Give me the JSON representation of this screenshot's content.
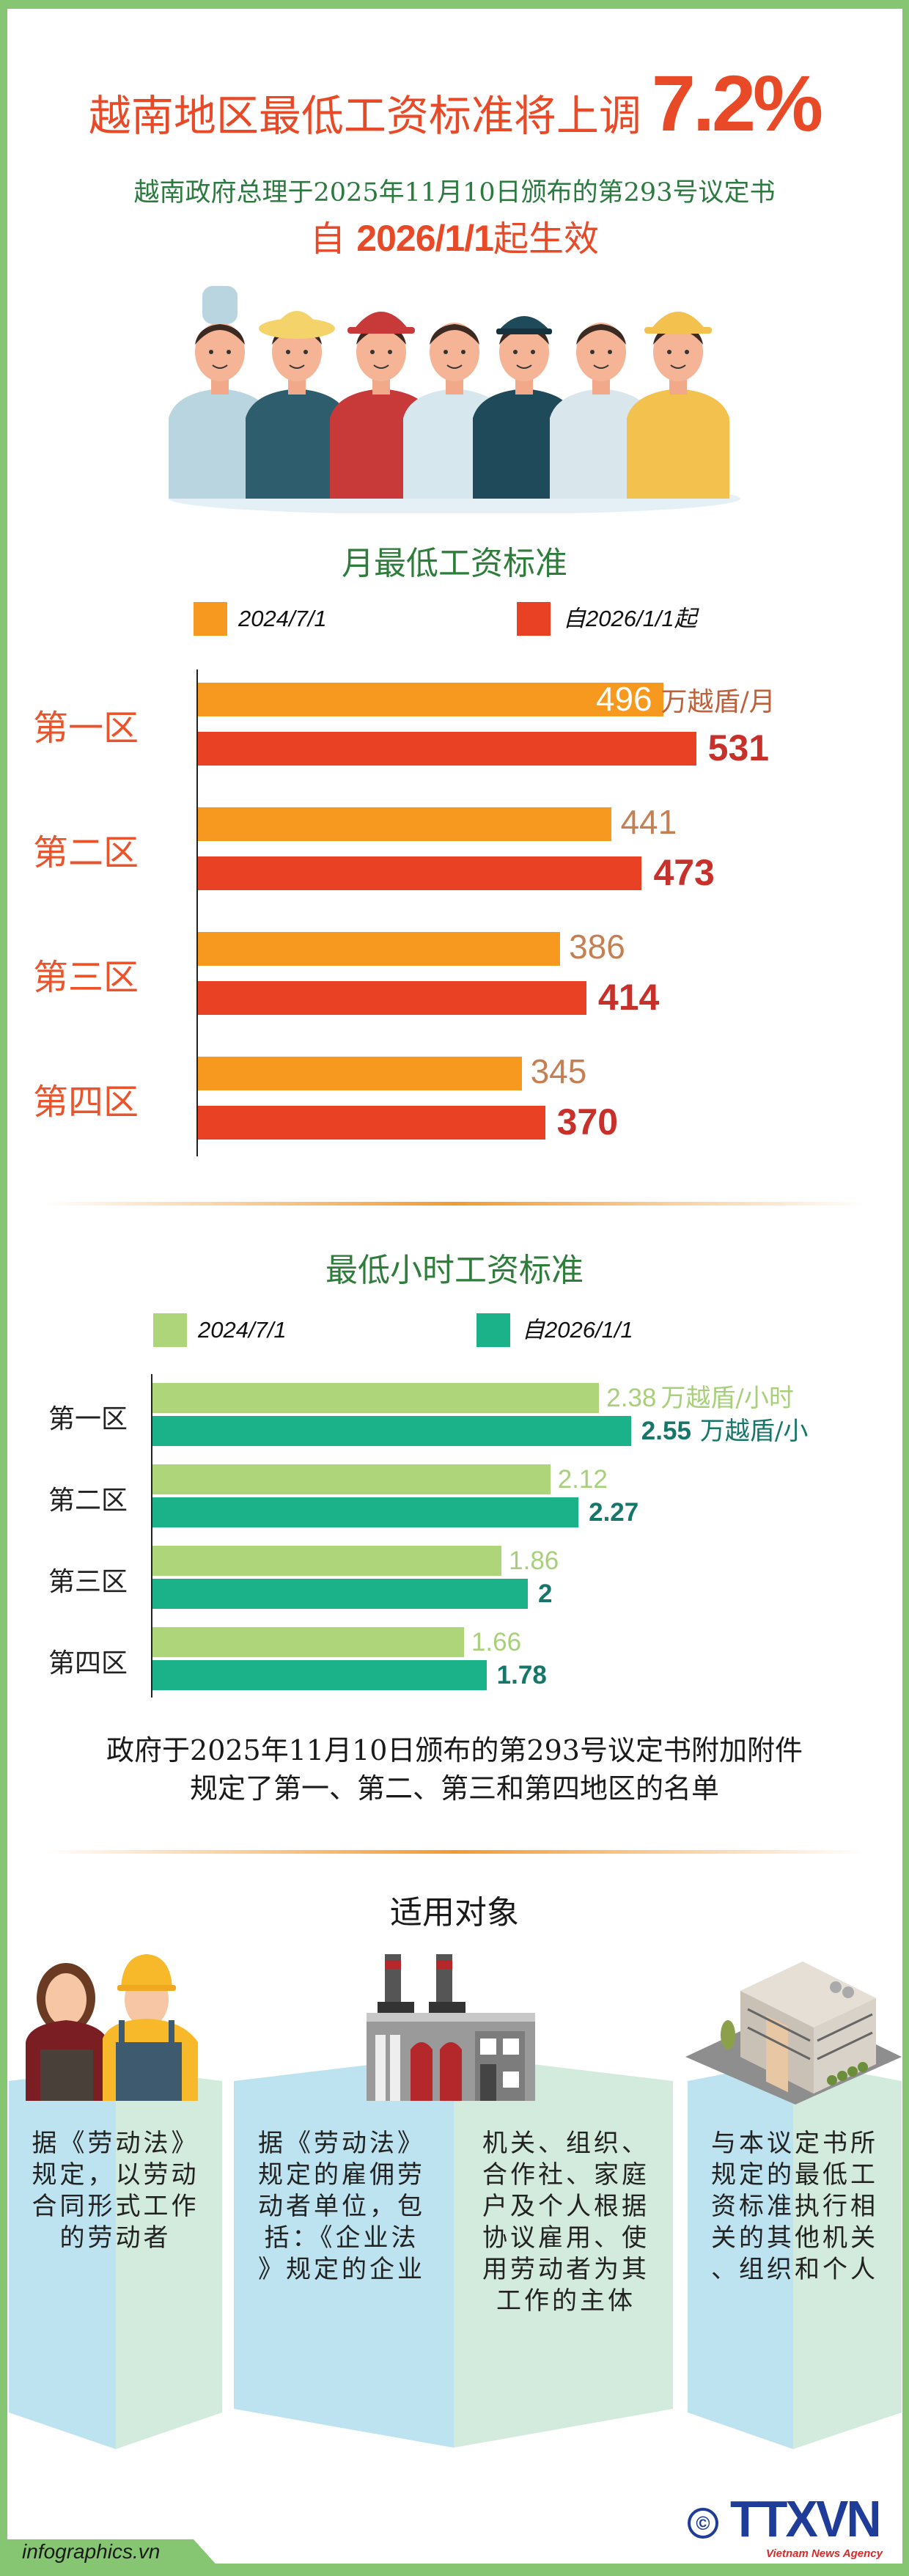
{
  "header": {
    "title": "越南地区最低工资标准将上调",
    "title_highlight": "7.2%",
    "subtitle": "越南政府总理于2025年11月10日颁布的第293号议定书",
    "effective_prefix": "自 ",
    "effective_date": "2026/1/1",
    "effective_suffix": "起生效"
  },
  "chart_data": [
    {
      "type": "bar",
      "orientation": "horizontal",
      "title": "月最低工资标准",
      "categories": [
        "第一区",
        "第二区",
        "第三区",
        "第四区"
      ],
      "unit_label": "万越盾/月",
      "series": [
        {
          "name": "2024/7/1",
          "values": [
            496,
            441,
            386,
            345
          ],
          "color": "#F7991F"
        },
        {
          "name": "自2026/1/1起",
          "values": [
            531,
            473,
            414,
            370
          ],
          "color": "#E94124"
        }
      ],
      "legend_position": "top",
      "grid": false
    },
    {
      "type": "bar",
      "orientation": "horizontal",
      "title": "最低小时工资标准",
      "categories": [
        "第一区",
        "第二区",
        "第三区",
        "第四区"
      ],
      "unit_labels": [
        "万越盾/小时",
        "万越盾/小"
      ],
      "series": [
        {
          "name": "2024/7/1",
          "values": [
            2.38,
            2.12,
            1.86,
            1.66
          ],
          "color": "#AED57A"
        },
        {
          "name": "自2026/1/1",
          "values": [
            2.55,
            2.27,
            2,
            1.78
          ],
          "color": "#1BB189"
        }
      ],
      "legend_position": "top",
      "grid": false
    }
  ],
  "note": {
    "line1": "政府于2025年11月10日颁布的第293号议定书附加附件",
    "line2": "规定了第一、第二、第三和第四地区的名单"
  },
  "applicable": {
    "title": "适用对象",
    "panels": [
      {
        "icon": "workers-icon",
        "lines": [
          "据《劳动法》",
          "规定，以劳动",
          "合同形式工作",
          "的劳动者"
        ]
      },
      {
        "icon": "factory-icon",
        "lines": [
          "据《劳动法》",
          "规定的雇佣劳",
          "动者单位，包",
          "括：《企业法",
          "》规定的企业"
        ]
      },
      {
        "icon": "",
        "lines": [
          "机关、组织、",
          "合作社、家庭",
          "户及个人根据",
          "协议雇用、使",
          "用劳动者为其",
          "工作的主体"
        ]
      },
      {
        "icon": "office-building-icon",
        "lines": [
          "与本议定书所",
          "规定的最低工",
          "资标准执行相",
          "关的其他机关",
          "、组织和个人"
        ]
      }
    ]
  },
  "footer": {
    "site": "infographics.vn",
    "copyright": "©",
    "logo": "TTXVN",
    "logo_sub": "Vietnam News Agency"
  },
  "colors": {
    "border": "#86C672",
    "title_red": "#E84A27",
    "title_green": "#2E7D3A"
  }
}
